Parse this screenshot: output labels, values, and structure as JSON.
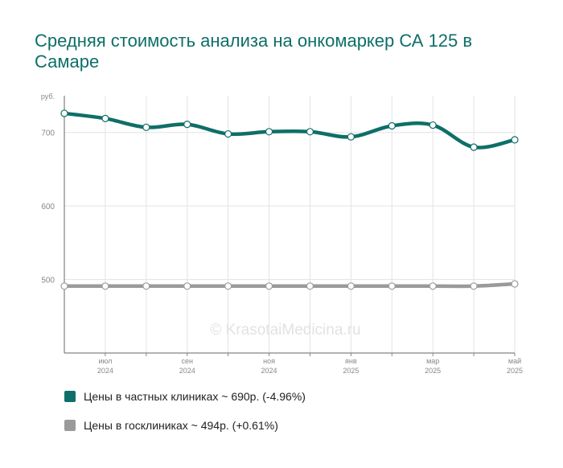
{
  "title": "Средняя стоимость анализа на онкомаркер СА 125 в Самаре",
  "watermark": "© KrasotaiMedicina.ru",
  "chart_data": {
    "type": "line",
    "ylabel": "руб.",
    "ylim": [
      400,
      750
    ],
    "yticks": [
      500,
      600,
      700
    ],
    "grid": true,
    "x_ticks": [
      {
        "index": 1,
        "month": "июл",
        "year": "2024"
      },
      {
        "index": 3,
        "month": "сен",
        "year": "2024"
      },
      {
        "index": 5,
        "month": "ноя",
        "year": "2024"
      },
      {
        "index": 7,
        "month": "янв",
        "year": "2025"
      },
      {
        "index": 9,
        "month": "мар",
        "year": "2025"
      },
      {
        "index": 11,
        "month": "май",
        "year": "2025"
      }
    ],
    "x": [
      "2024-06",
      "2024-07",
      "2024-08",
      "2024-09",
      "2024-10",
      "2024-11",
      "2024-12",
      "2025-01",
      "2025-02",
      "2025-03",
      "2025-04",
      "2025-05"
    ],
    "series": [
      {
        "name": "Цены в частных клиниках ~ 690р. (-4.96%)",
        "color": "#0e6f68",
        "values": [
          726,
          719,
          707,
          711,
          698,
          701,
          701,
          694,
          709,
          710,
          680,
          690
        ]
      },
      {
        "name": "Цены в госклиниках ~ 494р. (+0.61%)",
        "color": "#9a9a9a",
        "values": [
          491,
          491,
          491,
          491,
          491,
          491,
          491,
          491,
          491,
          491,
          491,
          494
        ]
      }
    ]
  }
}
